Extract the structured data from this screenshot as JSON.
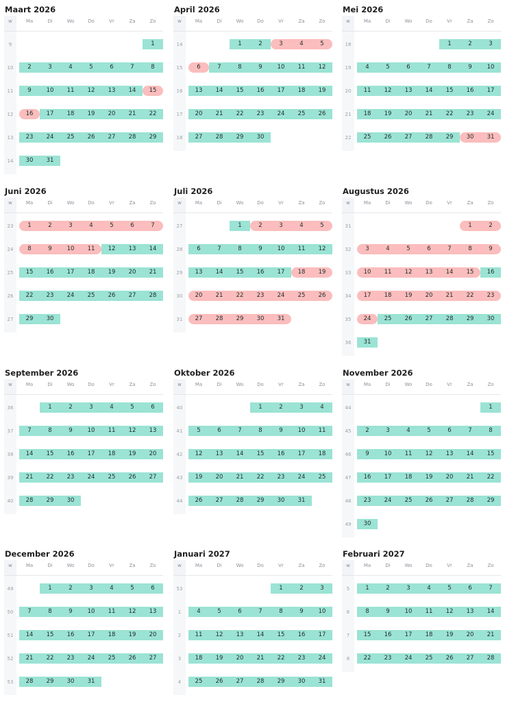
{
  "weekday_header": {
    "week": "w",
    "days": [
      "Ma",
      "Di",
      "Wo",
      "Do",
      "Vr",
      "Za",
      "Zo"
    ]
  },
  "colors": {
    "available": "#9be3d4",
    "booked": "#fbbdbd"
  },
  "months": [
    {
      "title": "Maart 2026",
      "first_weekday": 6,
      "num_days": 31,
      "first_week": 9,
      "weeks": [
        9,
        10,
        11,
        12,
        13,
        14
      ],
      "booked": [
        [
          15,
          16
        ]
      ]
    },
    {
      "title": "April 2026",
      "first_weekday": 2,
      "num_days": 30,
      "first_week": 14,
      "weeks": [
        14,
        15,
        16,
        17,
        18
      ],
      "booked": [
        [
          3,
          6
        ]
      ]
    },
    {
      "title": "Mei 2026",
      "first_weekday": 4,
      "num_days": 31,
      "first_week": 18,
      "weeks": [
        18,
        19,
        20,
        21,
        22
      ],
      "booked": [
        [
          30,
          31
        ]
      ]
    },
    {
      "title": "Juni 2026",
      "first_weekday": 0,
      "num_days": 30,
      "first_week": 23,
      "weeks": [
        23,
        24,
        25,
        26,
        27
      ],
      "booked": [
        [
          1,
          11
        ]
      ]
    },
    {
      "title": "Juli 2026",
      "first_weekday": 2,
      "num_days": 31,
      "first_week": 27,
      "weeks": [
        27,
        28,
        29,
        30,
        31
      ],
      "booked": [
        [
          2,
          5
        ],
        [
          18,
          31
        ]
      ]
    },
    {
      "title": "Augustus 2026",
      "first_weekday": 5,
      "num_days": 31,
      "first_week": 31,
      "weeks": [
        31,
        32,
        33,
        34,
        35,
        36
      ],
      "booked": [
        [
          1,
          15
        ],
        [
          17,
          24
        ]
      ]
    },
    {
      "title": "September 2026",
      "first_weekday": 1,
      "num_days": 30,
      "first_week": 36,
      "weeks": [
        36,
        37,
        38,
        39,
        40
      ],
      "booked": []
    },
    {
      "title": "Oktober 2026",
      "first_weekday": 3,
      "num_days": 31,
      "first_week": 40,
      "weeks": [
        40,
        41,
        42,
        43,
        44
      ],
      "booked": []
    },
    {
      "title": "November 2026",
      "first_weekday": 6,
      "num_days": 30,
      "first_week": 44,
      "weeks": [
        44,
        45,
        46,
        47,
        48,
        49
      ],
      "booked": []
    },
    {
      "title": "December 2026",
      "first_weekday": 1,
      "num_days": 31,
      "first_week": 49,
      "weeks": [
        49,
        50,
        51,
        52,
        53
      ],
      "booked": []
    },
    {
      "title": "Januari 2027",
      "first_weekday": 4,
      "num_days": 31,
      "first_week": 53,
      "weeks": [
        53,
        1,
        2,
        3,
        4
      ],
      "booked": []
    },
    {
      "title": "Februari 2027",
      "first_weekday": 0,
      "num_days": 28,
      "first_week": 5,
      "weeks": [
        5,
        6,
        7,
        8
      ],
      "booked": []
    }
  ]
}
